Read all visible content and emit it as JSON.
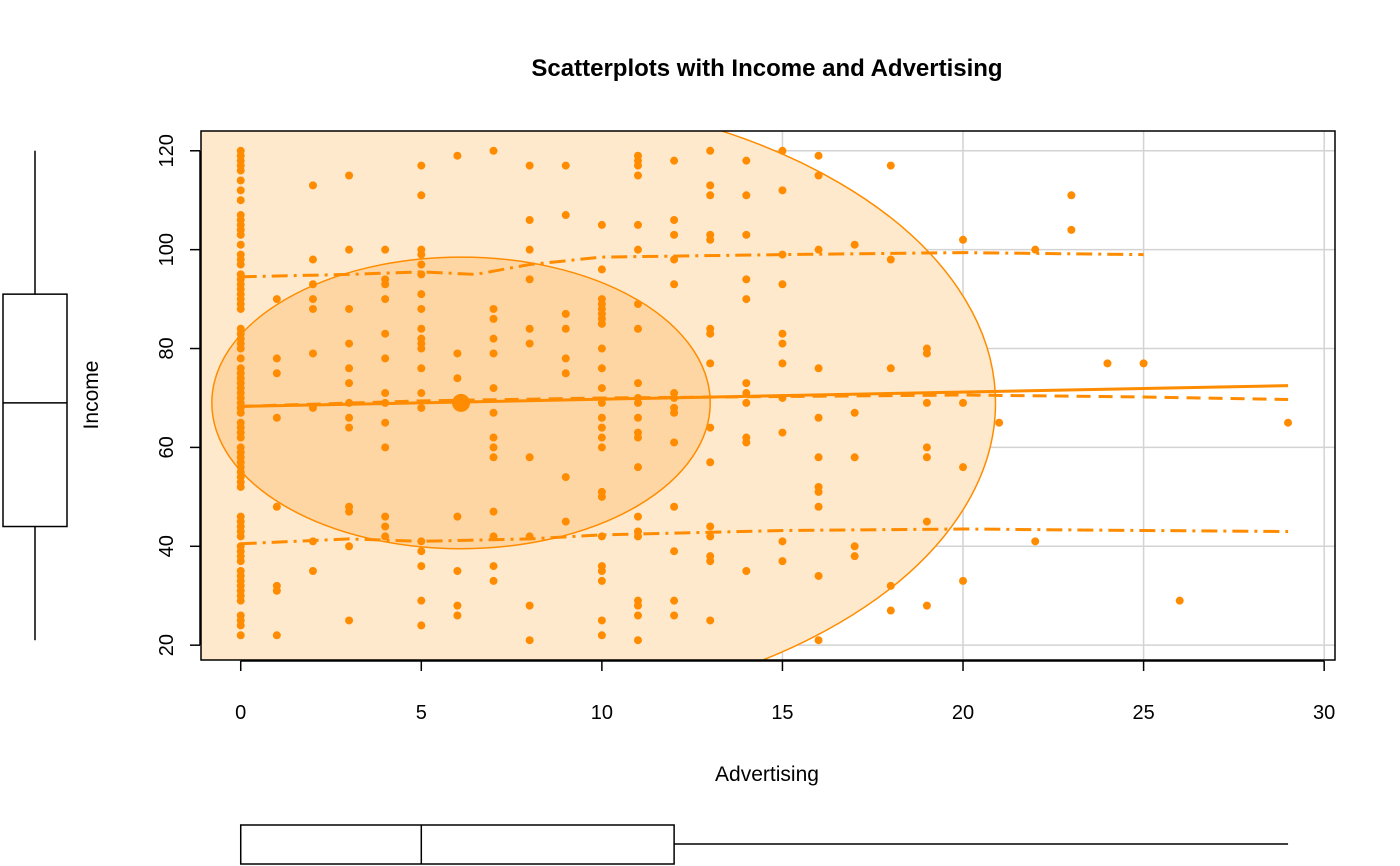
{
  "chart_data": {
    "type": "scatter",
    "title": "Scatterplots with Income and Advertising",
    "xlabel": "Advertising",
    "ylabel": "Income",
    "xlim": [
      -1.1,
      30.3
    ],
    "ylim": [
      17,
      124
    ],
    "x_ticks": [
      "0",
      "5",
      "10",
      "15",
      "20",
      "25",
      "30"
    ],
    "y_ticks": [
      "20",
      "40",
      "60",
      "80",
      "100",
      "120"
    ],
    "grid": true,
    "colors": {
      "points": "#ff8c00",
      "ellipse_outer_fill": "#ffe9cc",
      "ellipse_inner_fill": "#fdd6a3",
      "grid": "#d3d3d3",
      "axis": "#000000"
    },
    "points": [
      [
        0,
        120
      ],
      [
        0,
        119
      ],
      [
        0,
        118
      ],
      [
        0,
        117
      ],
      [
        0,
        116
      ],
      [
        0,
        114
      ],
      [
        0,
        112
      ],
      [
        0,
        110
      ],
      [
        0,
        107
      ],
      [
        0,
        106
      ],
      [
        0,
        105
      ],
      [
        0,
        104
      ],
      [
        0,
        103
      ],
      [
        0,
        101
      ],
      [
        0,
        99
      ],
      [
        0,
        98
      ],
      [
        0,
        97
      ],
      [
        0,
        95
      ],
      [
        0,
        94
      ],
      [
        0,
        93
      ],
      [
        0,
        92
      ],
      [
        0,
        91
      ],
      [
        0,
        90
      ],
      [
        0,
        89
      ],
      [
        0,
        88
      ],
      [
        0,
        84
      ],
      [
        0,
        83
      ],
      [
        0,
        82
      ],
      [
        0,
        81
      ],
      [
        0,
        80
      ],
      [
        0,
        78
      ],
      [
        0,
        76
      ],
      [
        0,
        75
      ],
      [
        0,
        74
      ],
      [
        0,
        73
      ],
      [
        0,
        72
      ],
      [
        0,
        71
      ],
      [
        0,
        70
      ],
      [
        0,
        69
      ],
      [
        0,
        68
      ],
      [
        0,
        67
      ],
      [
        0,
        65
      ],
      [
        0,
        64
      ],
      [
        0,
        63
      ],
      [
        0,
        62
      ],
      [
        0,
        60
      ],
      [
        0,
        59
      ],
      [
        0,
        58
      ],
      [
        0,
        57
      ],
      [
        0,
        56
      ],
      [
        0,
        55
      ],
      [
        0,
        54
      ],
      [
        0,
        53
      ],
      [
        0,
        52
      ],
      [
        0,
        46
      ],
      [
        0,
        45
      ],
      [
        0,
        44
      ],
      [
        0,
        43
      ],
      [
        0,
        42
      ],
      [
        0,
        40
      ],
      [
        0,
        39
      ],
      [
        0,
        38
      ],
      [
        0,
        37
      ],
      [
        0,
        35
      ],
      [
        0,
        34
      ],
      [
        0,
        33
      ],
      [
        0,
        32
      ],
      [
        0,
        31
      ],
      [
        0,
        30
      ],
      [
        0,
        29
      ],
      [
        0,
        26
      ],
      [
        0,
        25
      ],
      [
        0,
        24
      ],
      [
        0,
        22
      ],
      [
        1,
        90
      ],
      [
        1,
        78
      ],
      [
        1,
        75
      ],
      [
        1,
        66
      ],
      [
        1,
        48
      ],
      [
        1,
        32
      ],
      [
        1,
        31
      ],
      [
        1,
        22
      ],
      [
        2,
        113
      ],
      [
        2,
        98
      ],
      [
        2,
        93
      ],
      [
        2,
        90
      ],
      [
        2,
        88
      ],
      [
        2,
        79
      ],
      [
        2,
        68
      ],
      [
        2,
        41
      ],
      [
        2,
        35
      ],
      [
        3,
        115
      ],
      [
        3,
        100
      ],
      [
        3,
        88
      ],
      [
        3,
        81
      ],
      [
        3,
        76
      ],
      [
        3,
        73
      ],
      [
        3,
        69
      ],
      [
        3,
        66
      ],
      [
        3,
        64
      ],
      [
        3,
        48
      ],
      [
        3,
        47
      ],
      [
        3,
        40
      ],
      [
        3,
        25
      ],
      [
        4,
        100
      ],
      [
        4,
        94
      ],
      [
        4,
        93
      ],
      [
        4,
        90
      ],
      [
        4,
        83
      ],
      [
        4,
        78
      ],
      [
        4,
        71
      ],
      [
        4,
        69
      ],
      [
        4,
        65
      ],
      [
        4,
        60
      ],
      [
        4,
        46
      ],
      [
        4,
        44
      ],
      [
        4,
        42
      ],
      [
        5,
        117
      ],
      [
        5,
        111
      ],
      [
        5,
        100
      ],
      [
        5,
        99
      ],
      [
        5,
        97
      ],
      [
        5,
        95
      ],
      [
        5,
        91
      ],
      [
        5,
        88
      ],
      [
        5,
        84
      ],
      [
        5,
        82
      ],
      [
        5,
        81
      ],
      [
        5,
        80
      ],
      [
        5,
        76
      ],
      [
        5,
        71
      ],
      [
        5,
        68
      ],
      [
        5,
        41
      ],
      [
        5,
        39
      ],
      [
        5,
        36
      ],
      [
        5,
        29
      ],
      [
        5,
        24
      ],
      [
        6,
        119
      ],
      [
        6,
        79
      ],
      [
        6,
        74
      ],
      [
        6,
        46
      ],
      [
        6,
        35
      ],
      [
        6,
        28
      ],
      [
        6,
        26
      ],
      [
        7,
        120
      ],
      [
        7,
        88
      ],
      [
        7,
        86
      ],
      [
        7,
        82
      ],
      [
        7,
        79
      ],
      [
        7,
        72
      ],
      [
        7,
        67
      ],
      [
        7,
        62
      ],
      [
        7,
        60
      ],
      [
        7,
        58
      ],
      [
        7,
        47
      ],
      [
        7,
        42
      ],
      [
        7,
        36
      ],
      [
        7,
        33
      ],
      [
        8,
        117
      ],
      [
        8,
        106
      ],
      [
        8,
        100
      ],
      [
        8,
        94
      ],
      [
        8,
        84
      ],
      [
        8,
        81
      ],
      [
        8,
        58
      ],
      [
        8,
        42
      ],
      [
        8,
        28
      ],
      [
        8,
        21
      ],
      [
        9,
        117
      ],
      [
        9,
        107
      ],
      [
        9,
        87
      ],
      [
        9,
        84
      ],
      [
        9,
        78
      ],
      [
        9,
        75
      ],
      [
        9,
        54
      ],
      [
        9,
        45
      ],
      [
        10,
        105
      ],
      [
        10,
        96
      ],
      [
        10,
        90
      ],
      [
        10,
        89
      ],
      [
        10,
        88
      ],
      [
        10,
        87
      ],
      [
        10,
        86
      ],
      [
        10,
        85
      ],
      [
        10,
        80
      ],
      [
        10,
        76
      ],
      [
        10,
        72
      ],
      [
        10,
        69
      ],
      [
        10,
        66
      ],
      [
        10,
        64
      ],
      [
        10,
        62
      ],
      [
        10,
        60
      ],
      [
        10,
        51
      ],
      [
        10,
        50
      ],
      [
        10,
        42
      ],
      [
        10,
        36
      ],
      [
        10,
        35
      ],
      [
        10,
        33
      ],
      [
        10,
        25
      ],
      [
        10,
        22
      ],
      [
        11,
        119
      ],
      [
        11,
        118
      ],
      [
        11,
        117
      ],
      [
        11,
        115
      ],
      [
        11,
        105
      ],
      [
        11,
        100
      ],
      [
        11,
        89
      ],
      [
        11,
        84
      ],
      [
        11,
        73
      ],
      [
        11,
        70
      ],
      [
        11,
        69
      ],
      [
        11,
        66
      ],
      [
        11,
        63
      ],
      [
        11,
        62
      ],
      [
        11,
        56
      ],
      [
        11,
        46
      ],
      [
        11,
        43
      ],
      [
        11,
        42
      ],
      [
        11,
        29
      ],
      [
        11,
        28
      ],
      [
        11,
        26
      ],
      [
        11,
        21
      ],
      [
        12,
        118
      ],
      [
        12,
        106
      ],
      [
        12,
        103
      ],
      [
        12,
        98
      ],
      [
        12,
        93
      ],
      [
        12,
        71
      ],
      [
        12,
        70
      ],
      [
        12,
        68
      ],
      [
        12,
        67
      ],
      [
        12,
        61
      ],
      [
        12,
        48
      ],
      [
        12,
        39
      ],
      [
        12,
        29
      ],
      [
        12,
        26
      ],
      [
        13,
        120
      ],
      [
        13,
        113
      ],
      [
        13,
        111
      ],
      [
        13,
        103
      ],
      [
        13,
        102
      ],
      [
        13,
        84
      ],
      [
        13,
        83
      ],
      [
        13,
        77
      ],
      [
        13,
        64
      ],
      [
        13,
        57
      ],
      [
        13,
        44
      ],
      [
        13,
        42
      ],
      [
        13,
        38
      ],
      [
        13,
        37
      ],
      [
        13,
        25
      ],
      [
        14,
        118
      ],
      [
        14,
        111
      ],
      [
        14,
        103
      ],
      [
        14,
        94
      ],
      [
        14,
        90
      ],
      [
        14,
        73
      ],
      [
        14,
        71
      ],
      [
        14,
        69
      ],
      [
        14,
        62
      ],
      [
        14,
        61
      ],
      [
        14,
        35
      ],
      [
        15,
        120
      ],
      [
        15,
        112
      ],
      [
        15,
        99
      ],
      [
        15,
        93
      ],
      [
        15,
        83
      ],
      [
        15,
        81
      ],
      [
        15,
        77
      ],
      [
        15,
        70
      ],
      [
        15,
        63
      ],
      [
        15,
        41
      ],
      [
        15,
        37
      ],
      [
        16,
        119
      ],
      [
        16,
        115
      ],
      [
        16,
        100
      ],
      [
        16,
        76
      ],
      [
        16,
        66
      ],
      [
        16,
        58
      ],
      [
        16,
        52
      ],
      [
        16,
        51
      ],
      [
        16,
        48
      ],
      [
        16,
        34
      ],
      [
        16,
        21
      ],
      [
        17,
        101
      ],
      [
        17,
        67
      ],
      [
        17,
        58
      ],
      [
        17,
        40
      ],
      [
        17,
        38
      ],
      [
        18,
        117
      ],
      [
        18,
        98
      ],
      [
        18,
        76
      ],
      [
        18,
        32
      ],
      [
        18,
        27
      ],
      [
        19,
        80
      ],
      [
        19,
        79
      ],
      [
        19,
        69
      ],
      [
        19,
        60
      ],
      [
        19,
        58
      ],
      [
        19,
        45
      ],
      [
        19,
        28
      ],
      [
        20,
        102
      ],
      [
        20,
        69
      ],
      [
        20,
        56
      ],
      [
        20,
        33
      ],
      [
        21,
        65
      ],
      [
        22,
        100
      ],
      [
        22,
        41
      ],
      [
        23,
        111
      ],
      [
        23,
        104
      ],
      [
        24,
        77
      ],
      [
        25,
        77
      ],
      [
        26,
        29
      ],
      [
        29,
        65
      ]
    ],
    "centroid": [
      6.1,
      69
    ],
    "regression_line": {
      "x": [
        0,
        29
      ],
      "y": [
        68.3,
        72.5
      ]
    },
    "loess_curve": [
      [
        0,
        68.3
      ],
      [
        5,
        69.4
      ],
      [
        10,
        70
      ],
      [
        15,
        70.3
      ],
      [
        20,
        70.6
      ],
      [
        25,
        70.2
      ],
      [
        29,
        69.7
      ]
    ],
    "upper_spread": [
      [
        0,
        94.5
      ],
      [
        3,
        95
      ],
      [
        5,
        95.5
      ],
      [
        6.5,
        95
      ],
      [
        8,
        97
      ],
      [
        10,
        98.5
      ],
      [
        15,
        99
      ],
      [
        20,
        99.4
      ],
      [
        25,
        99
      ]
    ],
    "lower_spread": [
      [
        0,
        40.5
      ],
      [
        3,
        41.5
      ],
      [
        5,
        41
      ],
      [
        8,
        41.5
      ],
      [
        10,
        42.3
      ],
      [
        15,
        43.2
      ],
      [
        20,
        43.5
      ],
      [
        25,
        43.2
      ],
      [
        29,
        43
      ]
    ],
    "ellipses": [
      {
        "level": "inner",
        "cx": 6.1,
        "cy": 69,
        "rx": 6.9,
        "ry": 29.5
      },
      {
        "level": "outer",
        "cx": 6.1,
        "cy": 69,
        "rx": 14.8,
        "ry": 63
      }
    ],
    "boxplot_income": {
      "min": 21,
      "q1": 44,
      "median": 69,
      "q3": 91,
      "max": 120
    },
    "boxplot_advertising": {
      "min": 0,
      "q1": 0,
      "median": 5,
      "q3": 12,
      "max": 29
    }
  }
}
